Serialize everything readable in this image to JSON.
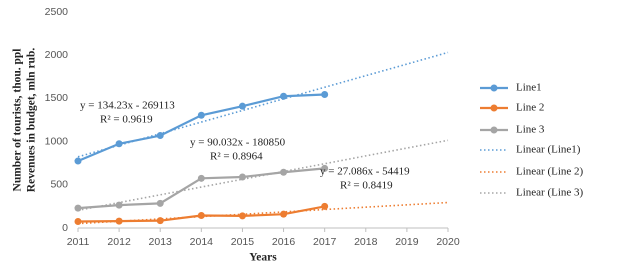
{
  "chart_data": {
    "type": "line",
    "x_label": "Years",
    "y_label": [
      "Number of tourists, thou. ppl",
      "Revenues in budget, mln rub."
    ],
    "x": [
      2011,
      2012,
      2013,
      2014,
      2015,
      2016,
      2017,
      2018,
      2019,
      2020
    ],
    "xlim": [
      2011,
      2020
    ],
    "xticks": [
      2011,
      2012,
      2013,
      2014,
      2015,
      2016,
      2017,
      2018,
      2019,
      2020
    ],
    "ylim": [
      0,
      2500
    ],
    "yticks": [
      0,
      500,
      1000,
      1500,
      2000,
      2500
    ],
    "grid": false,
    "legend": "right",
    "series": [
      {
        "name": "Line1",
        "color": "#5b9bd5",
        "style": "solid",
        "values": [
          775,
          975,
          1070,
          1305,
          1410,
          1525,
          1545,
          null,
          null,
          null
        ]
      },
      {
        "name": "Line 2",
        "color": "#ed7d31",
        "style": "solid",
        "values": [
          75,
          80,
          85,
          145,
          140,
          160,
          250,
          null,
          null,
          null
        ]
      },
      {
        "name": "Line 3",
        "color": "#a5a5a5",
        "style": "solid",
        "values": [
          230,
          265,
          285,
          575,
          590,
          645,
          690,
          null,
          null,
          null
        ]
      },
      {
        "name": "Linear (Line1)",
        "color": "#5b9bd5",
        "style": "dotted",
        "values": [
          824,
          958,
          1092,
          1226,
          1360,
          1495,
          1629,
          1763,
          1897,
          2032
        ]
      },
      {
        "name": "Linear (Line 2)",
        "color": "#ed7d31",
        "style": "dotted",
        "values": [
          51,
          78,
          105,
          132,
          159,
          186,
          214,
          241,
          268,
          295
        ]
      },
      {
        "name": "Linear (Line 3)",
        "color": "#a5a5a5",
        "style": "dotted",
        "values": [
          204,
          294,
          384,
          474,
          564,
          654,
          744,
          835,
          925,
          1015
        ]
      }
    ],
    "annotations": [
      [
        "y = 134.23x - 269113",
        "R² = 0.9619"
      ],
      [
        "y = 90.032x - 180850",
        "R² = 0.8964"
      ],
      [
        "y = 27.086x - 54419",
        "R² = 0.8419"
      ]
    ]
  }
}
